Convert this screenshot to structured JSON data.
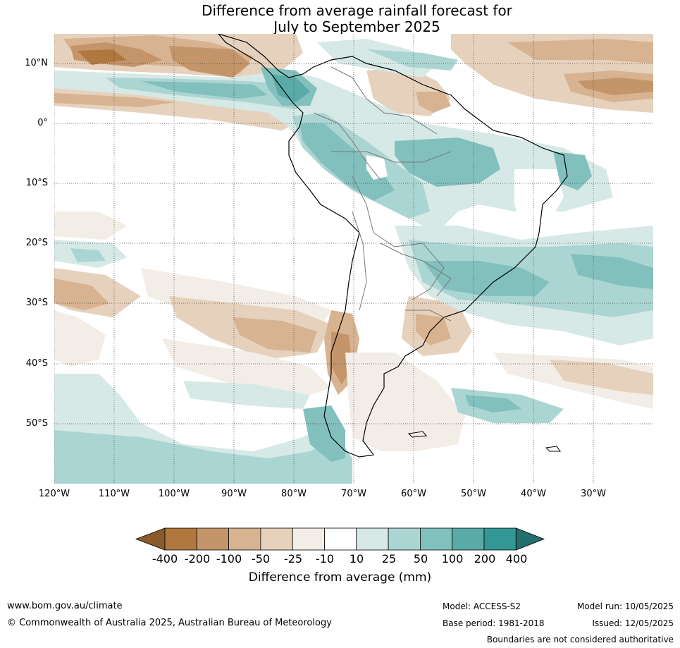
{
  "title": {
    "line1": "Difference from average rainfall forecast for",
    "line2": "July to September 2025"
  },
  "map": {
    "region": "South America",
    "lat_labels": [
      "10°N",
      "0°",
      "10°S",
      "20°S",
      "30°S",
      "40°S",
      "50°S"
    ],
    "lon_labels": [
      "120°W",
      "110°W",
      "100°W",
      "90°W",
      "80°W",
      "70°W",
      "60°W",
      "50°W",
      "40°W",
      "30°W"
    ]
  },
  "colorbar": {
    "labels": [
      "-400",
      "-200",
      "-100",
      "-50",
      "-25",
      "-10",
      "10",
      "25",
      "50",
      "100",
      "200",
      "400"
    ],
    "colors": [
      "#8b5a2b",
      "#b0773f",
      "#c4956a",
      "#d7b391",
      "#e6d1bd",
      "#f3ede7",
      "#ffffff",
      "#d6e9e7",
      "#abd5d3",
      "#82c0bd",
      "#5aaaa7",
      "#339895",
      "#226f6d"
    ],
    "title": "Difference from average (mm)"
  },
  "footer": {
    "website": "www.bom.gov.au/climate",
    "copyright": "© Commonwealth of Australia 2025, Australian Bureau of Meteorology",
    "model": "Model: ACCESS-S2",
    "base_period": "Base period: 1981-2018",
    "model_run": "Model run: 10/05/2025",
    "issued": "Issued: 12/05/2025",
    "disclaimer": "Boundaries are not considered authoritative"
  }
}
